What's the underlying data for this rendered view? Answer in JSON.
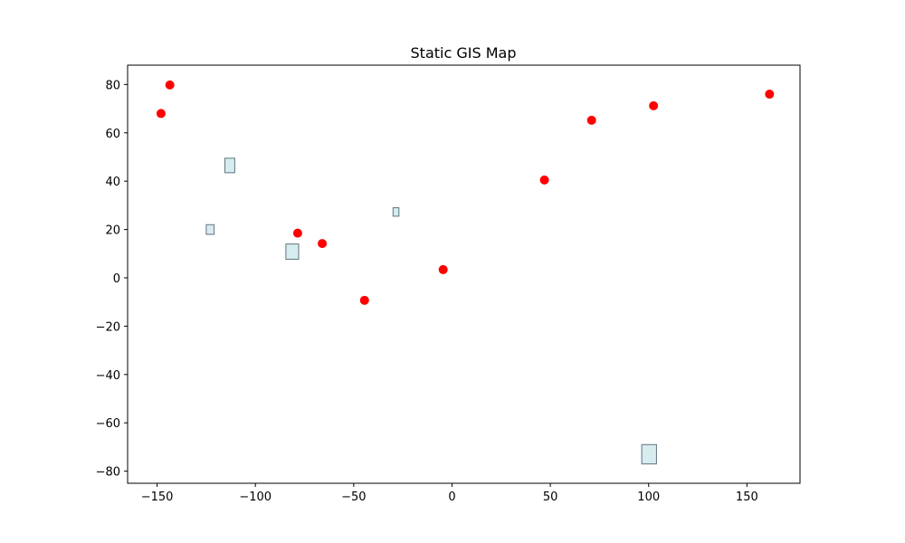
{
  "chart_data": {
    "type": "scatter",
    "title": "Static GIS Map",
    "xlabel": "",
    "ylabel": "",
    "xlim": [
      -165,
      177
    ],
    "ylim": [
      -85,
      88
    ],
    "xticks": [
      -150,
      -100,
      -50,
      0,
      50,
      100,
      150
    ],
    "yticks": [
      -80,
      -60,
      -40,
      -20,
      0,
      20,
      40,
      60,
      80
    ],
    "xtick_labels": [
      "−150",
      "−100",
      "−50",
      "0",
      "50",
      "100",
      "150"
    ],
    "ytick_labels": [
      "−80",
      "−60",
      "−40",
      "−20",
      "0",
      "20",
      "40",
      "60",
      "80"
    ],
    "grid": false,
    "points": [
      {
        "x": -148,
        "y": 68
      },
      {
        "x": -143.5,
        "y": 79.8
      },
      {
        "x": -78.5,
        "y": 18.5
      },
      {
        "x": -66,
        "y": 14.2
      },
      {
        "x": -44.5,
        "y": -9.3
      },
      {
        "x": -4.5,
        "y": 3.4
      },
      {
        "x": 47,
        "y": 40.5
      },
      {
        "x": 71,
        "y": 65.2
      },
      {
        "x": 102.5,
        "y": 71.2
      },
      {
        "x": 161.5,
        "y": 76
      }
    ],
    "polygons": [
      {
        "x0": -115.5,
        "x1": -110.5,
        "y0": 43.5,
        "y1": 49.5
      },
      {
        "x0": -125,
        "x1": -121,
        "y0": 18,
        "y1": 22
      },
      {
        "x0": -84.5,
        "x1": -78,
        "y0": 7.7,
        "y1": 14
      },
      {
        "x0": -30,
        "x1": -27,
        "y0": 25.5,
        "y1": 29
      },
      {
        "x0": 96.5,
        "x1": 104,
        "y0": -77,
        "y1": -69
      }
    ],
    "colors": {
      "point": "#ff0000",
      "polygon_fill": "#d7ecee",
      "polygon_edge": "#5e7480",
      "axes": "#000000"
    }
  }
}
